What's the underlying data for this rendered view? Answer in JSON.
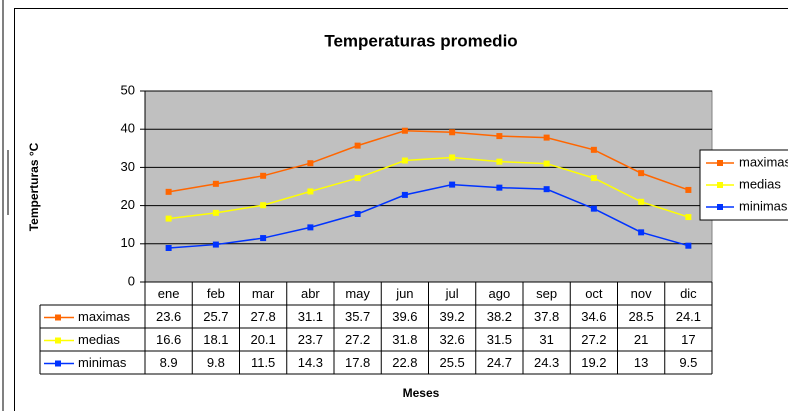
{
  "chart_data": {
    "type": "line",
    "title": "Temperaturas promedio",
    "y_label": "Temperturas °C",
    "x_label": "Meses",
    "categories": [
      "ene",
      "feb",
      "mar",
      "abr",
      "may",
      "jun",
      "jul",
      "ago",
      "sep",
      "oct",
      "nov",
      "dic"
    ],
    "series": [
      {
        "name": "maximas",
        "color": "#ff6600",
        "values": [
          23.6,
          25.7,
          27.8,
          31.1,
          35.7,
          39.6,
          39.2,
          38.2,
          37.8,
          34.6,
          28.5,
          24.1
        ]
      },
      {
        "name": "medias",
        "color": "#ffff00",
        "values": [
          16.6,
          18.1,
          20.1,
          23.7,
          27.2,
          31.8,
          32.6,
          31.5,
          31,
          27.2,
          21,
          17
        ]
      },
      {
        "name": "minimas",
        "color": "#0033ff",
        "values": [
          8.9,
          9.8,
          11.5,
          14.3,
          17.8,
          22.8,
          25.5,
          24.7,
          24.3,
          19.2,
          13,
          9.5
        ]
      }
    ],
    "ylim": [
      0,
      50
    ],
    "yticks": [
      0,
      10,
      20,
      30,
      40,
      50
    ],
    "grid": true,
    "plot_background": "#c0c0c0",
    "legend": "right"
  }
}
